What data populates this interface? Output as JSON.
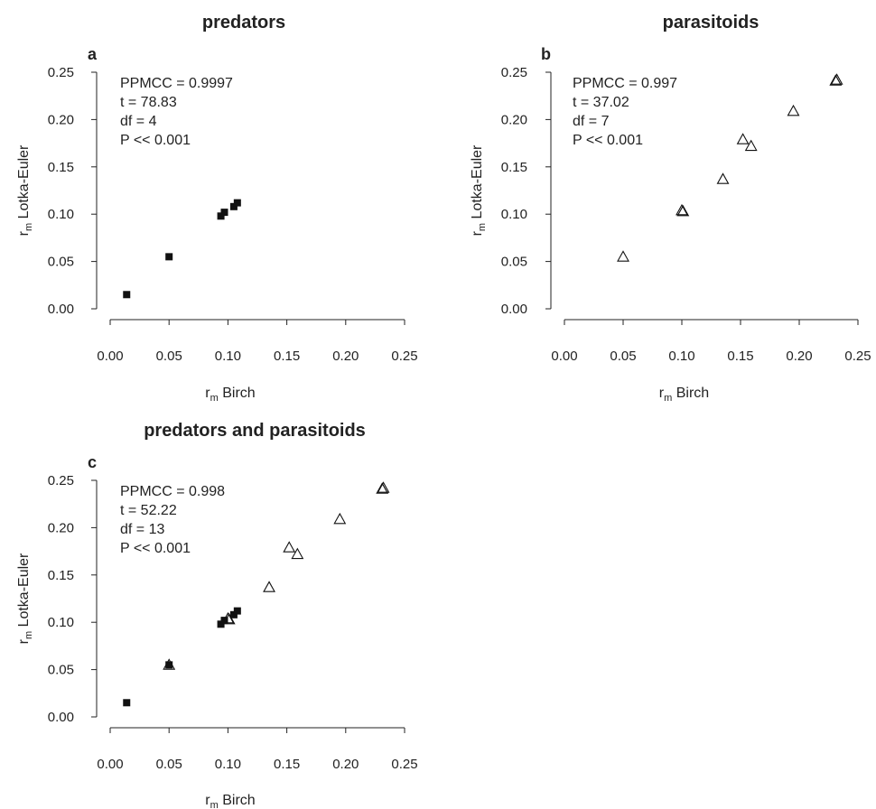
{
  "chart_data": [
    {
      "type": "scatter",
      "panel": "a",
      "title": "predators",
      "xlabel": "r",
      "xlabel_sub": "m",
      "xlabel_rest": " Birch",
      "ylabel": "r",
      "ylabel_sub": "m",
      "ylabel_rest": " Lotka-Euler",
      "xlim": [
        0,
        0.25
      ],
      "ylim": [
        0,
        0.25
      ],
      "xticks": [
        "0.00",
        "0.05",
        "0.10",
        "0.15",
        "0.20",
        "0.25"
      ],
      "yticks": [
        "0.00",
        "0.05",
        "0.10",
        "0.15",
        "0.20",
        "0.25"
      ],
      "stats": [
        "PPMCC = 0.9997",
        "t = 78.83",
        "df = 4",
        "P << 0.001"
      ],
      "series": [
        {
          "marker": "filled-square",
          "points": [
            [
              0.014,
              0.015
            ],
            [
              0.05,
              0.055
            ],
            [
              0.094,
              0.098
            ],
            [
              0.097,
              0.102
            ],
            [
              0.105,
              0.108
            ],
            [
              0.108,
              0.112
            ]
          ]
        }
      ]
    },
    {
      "type": "scatter",
      "panel": "b",
      "title": "parasitoids",
      "xlabel": "r",
      "xlabel_sub": "m",
      "xlabel_rest": " Birch",
      "ylabel": "r",
      "ylabel_sub": "m",
      "ylabel_rest": " Lotka-Euler",
      "xlim": [
        0,
        0.25
      ],
      "ylim": [
        0,
        0.25
      ],
      "xticks": [
        "0.00",
        "0.05",
        "0.10",
        "0.15",
        "0.20",
        "0.25"
      ],
      "yticks": [
        "0.00",
        "0.05",
        "0.10",
        "0.15",
        "0.20",
        "0.25"
      ],
      "stats": [
        "PPMCC = 0.997",
        "t = 37.02",
        "df = 7",
        "P << 0.001"
      ],
      "series": [
        {
          "marker": "open-triangle",
          "points": [
            [
              0.05,
              0.055
            ],
            [
              0.1,
              0.104
            ],
            [
              0.101,
              0.103
            ],
            [
              0.135,
              0.137
            ],
            [
              0.152,
              0.179
            ],
            [
              0.159,
              0.172
            ],
            [
              0.195,
              0.209
            ],
            [
              0.231,
              0.241
            ],
            [
              0.232,
              0.242
            ]
          ]
        }
      ]
    },
    {
      "type": "scatter",
      "panel": "c",
      "title": "predators and parasitoids",
      "xlabel": "r",
      "xlabel_sub": "m",
      "xlabel_rest": " Birch",
      "ylabel": "r",
      "ylabel_sub": "m",
      "ylabel_rest": " Lotka-Euler",
      "xlim": [
        0,
        0.25
      ],
      "ylim": [
        0,
        0.25
      ],
      "xticks": [
        "0.00",
        "0.05",
        "0.10",
        "0.15",
        "0.20",
        "0.25"
      ],
      "yticks": [
        "0.00",
        "0.05",
        "0.10",
        "0.15",
        "0.20",
        "0.25"
      ],
      "stats": [
        "PPMCC = 0.998",
        "t = 52.22",
        "df = 13",
        "P << 0.001"
      ],
      "series": [
        {
          "marker": "filled-square",
          "points": [
            [
              0.014,
              0.015
            ],
            [
              0.05,
              0.055
            ],
            [
              0.094,
              0.098
            ],
            [
              0.097,
              0.102
            ],
            [
              0.105,
              0.108
            ],
            [
              0.108,
              0.112
            ]
          ]
        },
        {
          "marker": "open-triangle",
          "points": [
            [
              0.05,
              0.055
            ],
            [
              0.1,
              0.104
            ],
            [
              0.101,
              0.103
            ],
            [
              0.135,
              0.137
            ],
            [
              0.152,
              0.179
            ],
            [
              0.159,
              0.172
            ],
            [
              0.195,
              0.209
            ],
            [
              0.231,
              0.241
            ],
            [
              0.232,
              0.242
            ]
          ]
        }
      ]
    }
  ]
}
